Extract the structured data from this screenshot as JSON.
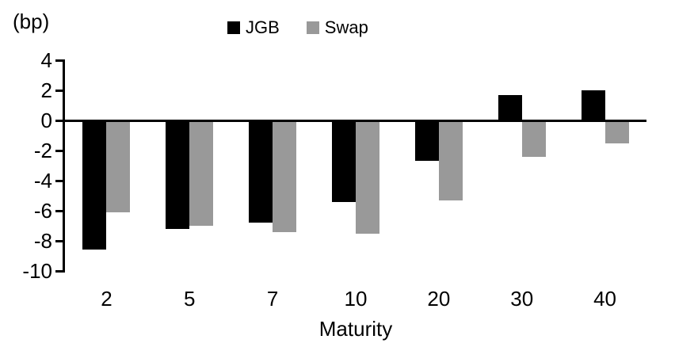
{
  "chart_data": {
    "type": "bar",
    "unit_label": "(bp)",
    "xlabel": "Maturity",
    "categories": [
      "2",
      "5",
      "7",
      "10",
      "20",
      "30",
      "40"
    ],
    "series": [
      {
        "name": "JGB",
        "color": "#000000",
        "values": [
          -8.6,
          -7.2,
          -6.8,
          -5.4,
          -2.7,
          1.7,
          2.0
        ]
      },
      {
        "name": "Swap",
        "color": "#999999",
        "values": [
          -6.1,
          -7.0,
          -7.4,
          -7.5,
          -5.3,
          -2.4,
          -1.5
        ]
      }
    ],
    "yticks": [
      4,
      2,
      0,
      -2,
      -4,
      -6,
      -8,
      -10
    ],
    "ylim": [
      -10,
      4
    ],
    "grid": false,
    "legend_position": "top",
    "axis_color": "#000000"
  }
}
